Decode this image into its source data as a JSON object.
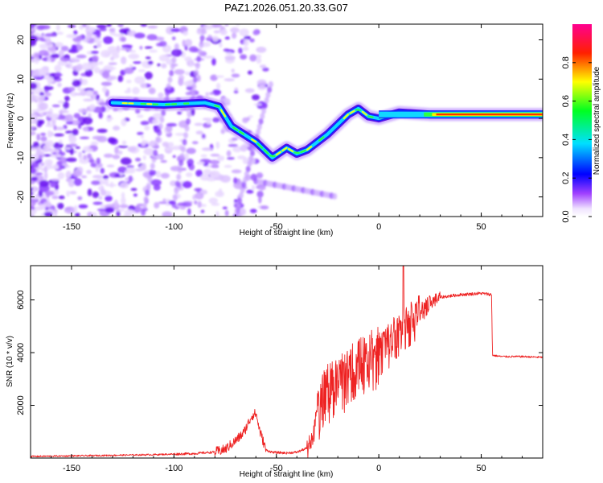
{
  "title": "PAZ1.2026.051.20.33.G07",
  "chart_data": [
    {
      "type": "heatmap",
      "name": "radio-occultation-spectrogram",
      "xlabel": "Height of straight line (km)",
      "ylabel": "Frequency (Hz)",
      "xlim": [
        -170,
        80
      ],
      "ylim": [
        -25,
        24
      ],
      "xticks": [
        -150,
        -100,
        -50,
        0,
        50
      ],
      "yticks": [
        -20,
        -10,
        0,
        10,
        20
      ],
      "colorbar": {
        "label": "Normalized spectral amplitude",
        "range": [
          0,
          1
        ],
        "ticks": [
          "0.0",
          "0.2",
          "0.4",
          "0.6",
          "0.8"
        ],
        "colormap": "rainbow (white-violet-blue-cyan-green-yellow-red-magenta)"
      },
      "ridge": {
        "description": "main frequency track (approximate)",
        "points": [
          [
            -130,
            4
          ],
          [
            -105,
            3.5
          ],
          [
            -85,
            4
          ],
          [
            -78,
            3
          ],
          [
            -72,
            -2
          ],
          [
            -60,
            -6
          ],
          [
            -52,
            -10
          ],
          [
            -45,
            -7.5
          ],
          [
            -40,
            -9
          ],
          [
            -35,
            -8
          ],
          [
            -25,
            -4
          ],
          [
            -15,
            1
          ],
          [
            -10,
            2.5
          ],
          [
            -5,
            0.5
          ],
          [
            0,
            0
          ],
          [
            10,
            1.5
          ],
          [
            25,
            1
          ],
          [
            80,
            1
          ]
        ]
      }
    },
    {
      "type": "line",
      "name": "snr-profile",
      "xlabel": "Height of straight line (km)",
      "ylabel": "SNR (10 * v/v)",
      "xlim": [
        -170,
        80
      ],
      "ylim": [
        0,
        7300
      ],
      "xticks": [
        -150,
        -100,
        -50,
        0,
        50
      ],
      "yticks": [
        2000,
        4000,
        6000
      ],
      "series_color": "#ee2222",
      "profile": {
        "x": [
          -170,
          -140,
          -110,
          -90,
          -80,
          -75,
          -70,
          -66,
          -62,
          -60,
          -58,
          -55,
          -52,
          -50,
          -45,
          -40,
          -35,
          -32,
          -30,
          -25,
          -20,
          -15,
          -10,
          -5,
          0,
          5,
          10,
          15,
          20,
          25,
          30,
          40,
          50,
          55,
          55.5,
          60,
          70,
          80
        ],
        "y": [
          60,
          90,
          130,
          170,
          230,
          330,
          650,
          950,
          1600,
          1700,
          1000,
          300,
          220,
          210,
          190,
          220,
          380,
          900,
          1900,
          2700,
          3000,
          3300,
          3700,
          4000,
          4100,
          4500,
          4900,
          5250,
          5600,
          5900,
          6100,
          6200,
          6250,
          6200,
          3900,
          3850,
          3850,
          3820
        ]
      }
    }
  ]
}
